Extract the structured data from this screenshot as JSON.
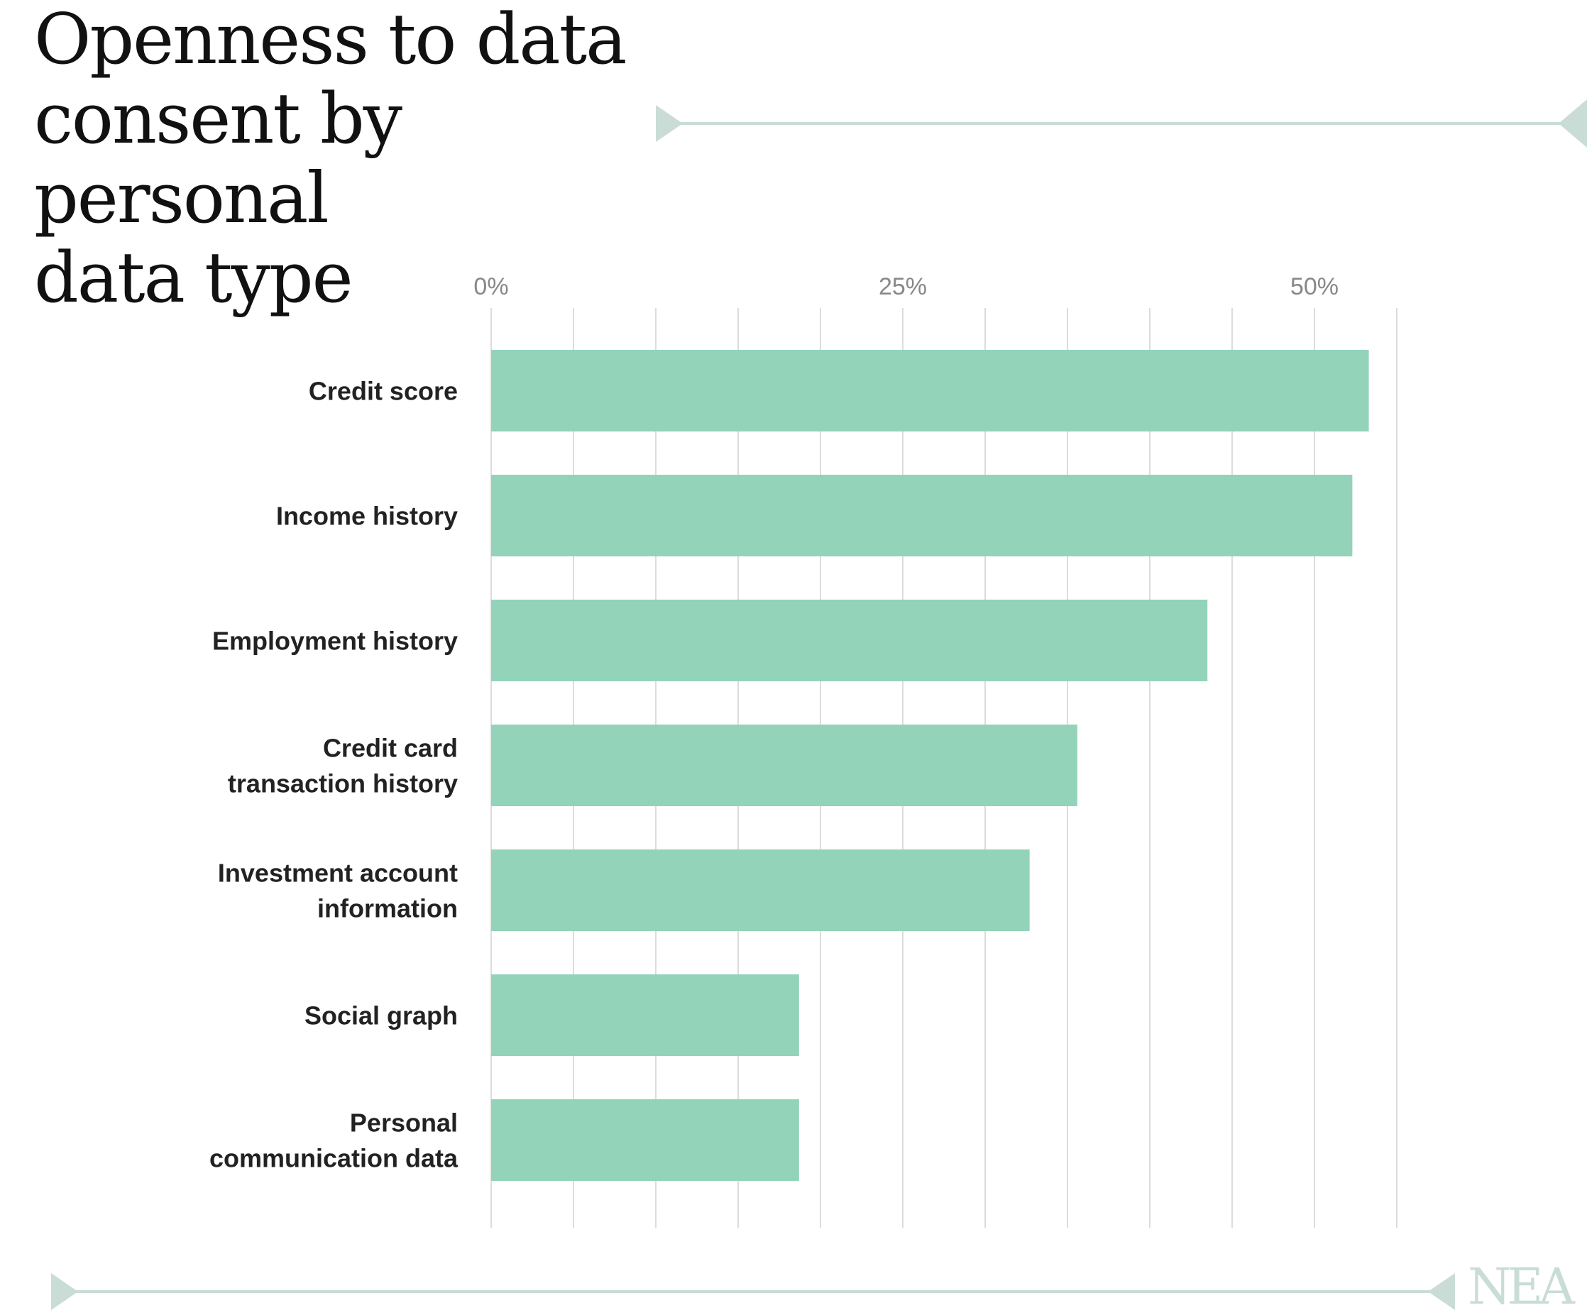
{
  "title": "Openness to data consent by personal data type",
  "title_lines": [
    "Openness to data",
    "consent by personal",
    "data type"
  ],
  "logo_text": "NEA",
  "colors": {
    "bar": "#93d3b9",
    "grid": "#dcdcdc",
    "decor": "#c9dcd6",
    "logo": "#c9dcd6",
    "title": "#111111",
    "category_text": "#222222",
    "tick_text": "#888888"
  },
  "chart_data": {
    "type": "bar",
    "orientation": "horizontal",
    "title": "Openness to data consent by personal data type",
    "xlabel": "",
    "ylabel": "",
    "xlim": [
      0,
      60
    ],
    "x_ticks": [
      0,
      25,
      50
    ],
    "x_tick_labels": [
      "0%",
      "25%",
      "50%"
    ],
    "x_axis_position": "top",
    "grid": true,
    "grid_step": 5,
    "categories": [
      [
        "Credit score"
      ],
      [
        "Income history"
      ],
      [
        "Employment history"
      ],
      [
        "Credit card",
        "transaction history"
      ],
      [
        "Investment account",
        "information"
      ],
      [
        "Social graph"
      ],
      [
        "Personal",
        "communication data"
      ]
    ],
    "values": [
      53.3,
      52.3,
      43.5,
      35.6,
      32.7,
      18.7,
      18.7
    ],
    "unit": "%"
  }
}
